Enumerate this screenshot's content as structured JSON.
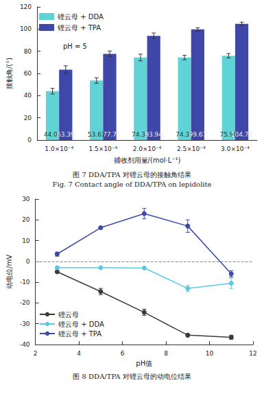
{
  "chart_data": [
    {
      "type": "bar",
      "caption": "图 7   DDA/TPA 对锂云母的接触角结果",
      "caption_en": "Fig. 7   Contact angle of DDA/TPA on lepidolite",
      "x_label": "捕收剂用量/(mol·L⁻¹)",
      "y_label": "接触角/(°)",
      "annotation": "pH = 5",
      "categories": [
        "1.0×10⁻⁴",
        "1.5×10⁻⁴",
        "2.0×10⁻⁴",
        "2.5×10⁻⁴",
        "3.0×10⁻⁴"
      ],
      "series": [
        {
          "name": "锂云母 + DDA",
          "color": "#5fd3d6",
          "values": [
            44.0,
            53.61,
            74.37,
            74.35,
            75.96
          ],
          "value_labels": [
            "44.00",
            "53.61",
            "74.37",
            "74.35",
            "75.96"
          ],
          "errors": [
            2.5,
            2.5,
            3,
            2,
            2
          ]
        },
        {
          "name": "锂云母 + TPA",
          "color": "#3f48a8",
          "values": [
            63.39,
            77.7,
            93.94,
            99.67,
            104.75
          ],
          "value_labels": [
            "63.39",
            "77.7",
            "93.94",
            "99.67",
            "104.75"
          ],
          "errors": [
            3.5,
            2.5,
            2.5,
            1.5,
            1.5
          ]
        }
      ],
      "ylim": [
        0,
        120
      ],
      "yticks": [
        0,
        20,
        40,
        60,
        80,
        100,
        120
      ],
      "data_labels": true,
      "legend": "upper left",
      "grid": false
    },
    {
      "type": "line",
      "caption": "图 8   DDA/TPA 对锂云母的动电位结果",
      "x_label": "pH值",
      "y_label": "动电位/mV",
      "x": [
        3,
        5,
        7,
        9,
        11
      ],
      "series": [
        {
          "name": "锂云母",
          "color": "#3a3a3a",
          "marker": "circle",
          "values": [
            -5,
            -14.5,
            -24.5,
            -35.5,
            -36.5
          ],
          "errors": [
            0.5,
            1.5,
            1.5,
            0.5,
            1
          ]
        },
        {
          "name": "锂云母 + DDA",
          "color": "#5cc9e2",
          "marker": "circle",
          "values": [
            -3,
            -3,
            -3.2,
            -13,
            -10.5
          ],
          "errors": [
            0.5,
            0.3,
            0.3,
            1.5,
            2.5
          ]
        },
        {
          "name": "锂云母 + TPA",
          "color": "#3d4aa8",
          "marker": "circle",
          "values": [
            3.5,
            16.2,
            23,
            17,
            -6
          ],
          "errors": [
            1,
            0.5,
            2.5,
            3,
            1.5
          ]
        }
      ],
      "hlines": [
        0
      ],
      "xlim": [
        2,
        12
      ],
      "xticks": [
        2,
        4,
        6,
        8,
        10,
        12
      ],
      "ylim": [
        -40,
        30
      ],
      "yticks": [
        -40,
        -30,
        -20,
        -10,
        0,
        10,
        20,
        30
      ],
      "legend": "lower left",
      "grid": false
    }
  ]
}
